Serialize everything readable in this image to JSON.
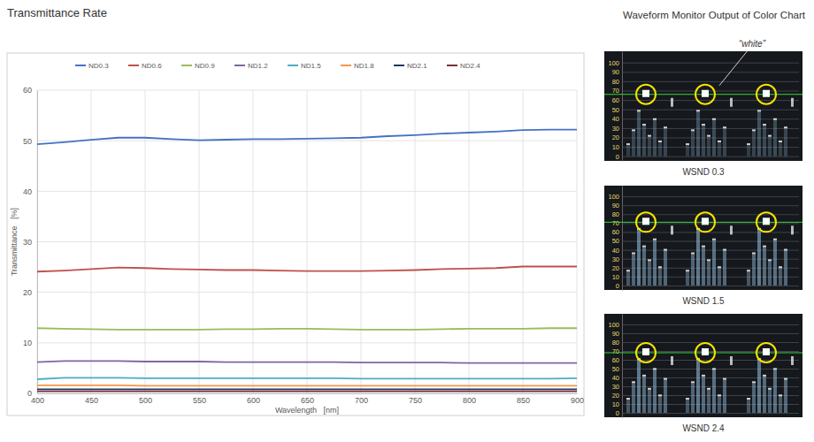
{
  "page": {
    "heading": "Waveform Monitor Output of Color Chart"
  },
  "chart_data": [
    {
      "type": "line",
      "title": "Transmittance Rate",
      "x_label": "Wavelength   [nm]",
      "y_label": "Transmittance   [%]",
      "x": [
        400,
        425,
        450,
        475,
        500,
        525,
        550,
        575,
        600,
        625,
        650,
        675,
        700,
        725,
        750,
        775,
        800,
        825,
        850,
        875,
        900
      ],
      "series": [
        {
          "name": "ND0.3",
          "color": "#4472c4",
          "values": [
            49.3,
            49.7,
            50.2,
            50.6,
            50.6,
            50.3,
            50.1,
            50.2,
            50.3,
            50.3,
            50.4,
            50.5,
            50.6,
            50.9,
            51.1,
            51.4,
            51.6,
            51.8,
            52.1,
            52.2,
            52.2
          ]
        },
        {
          "name": "ND0.6",
          "color": "#c0504d",
          "values": [
            24.1,
            24.3,
            24.6,
            24.9,
            24.8,
            24.6,
            24.5,
            24.4,
            24.4,
            24.3,
            24.2,
            24.2,
            24.2,
            24.3,
            24.4,
            24.6,
            24.7,
            24.8,
            25.1,
            25.1,
            25.1
          ]
        },
        {
          "name": "ND0.9",
          "color": "#9bbb59",
          "values": [
            12.9,
            12.8,
            12.7,
            12.6,
            12.6,
            12.6,
            12.6,
            12.7,
            12.7,
            12.8,
            12.8,
            12.7,
            12.6,
            12.6,
            12.6,
            12.7,
            12.8,
            12.8,
            12.8,
            12.9,
            12.9
          ]
        },
        {
          "name": "ND1.2",
          "color": "#8064a2",
          "values": [
            6.2,
            6.4,
            6.4,
            6.4,
            6.3,
            6.3,
            6.3,
            6.2,
            6.2,
            6.2,
            6.2,
            6.2,
            6.1,
            6.1,
            6.1,
            6.1,
            6.0,
            6.0,
            6.0,
            6.0,
            6.0
          ]
        },
        {
          "name": "ND1.5",
          "color": "#4bacc6",
          "values": [
            2.8,
            3.1,
            3.1,
            3.1,
            3.0,
            3.0,
            3.0,
            3.0,
            3.0,
            3.0,
            3.0,
            3.0,
            2.9,
            2.9,
            2.9,
            2.9,
            2.9,
            2.9,
            2.9,
            2.9,
            3.0
          ]
        },
        {
          "name": "ND1.8",
          "color": "#f79646",
          "values": [
            1.6,
            1.6,
            1.6,
            1.6,
            1.5,
            1.5,
            1.5,
            1.5,
            1.5,
            1.5,
            1.5,
            1.5,
            1.5,
            1.5,
            1.5,
            1.5,
            1.5,
            1.5,
            1.5,
            1.5,
            1.5
          ]
        },
        {
          "name": "ND2.1",
          "color": "#1f3864",
          "values": [
            0.8,
            0.8,
            0.8,
            0.8,
            0.8,
            0.8,
            0.8,
            0.8,
            0.8,
            0.8,
            0.8,
            0.8,
            0.8,
            0.8,
            0.8,
            0.8,
            0.8,
            0.8,
            0.8,
            0.8,
            0.8
          ]
        },
        {
          "name": "ND2.4",
          "color": "#7b2c3a",
          "values": [
            0.4,
            0.4,
            0.4,
            0.4,
            0.4,
            0.4,
            0.4,
            0.4,
            0.4,
            0.4,
            0.4,
            0.4,
            0.4,
            0.4,
            0.4,
            0.4,
            0.4,
            0.4,
            0.4,
            0.4,
            0.4
          ]
        }
      ],
      "xlim": [
        400,
        900
      ],
      "ylim": [
        0,
        60
      ],
      "xticks": [
        400,
        450,
        500,
        550,
        600,
        650,
        700,
        750,
        800,
        850,
        900
      ],
      "yticks": [
        0,
        10,
        20,
        30,
        40,
        50,
        60
      ],
      "grid": true,
      "legend": "top"
    },
    {
      "type": "waveform",
      "title": "WSND 0.3",
      "annotation": "“white”",
      "ylim": [
        -5,
        112
      ],
      "yticks": [
        0,
        10,
        20,
        30,
        40,
        50,
        60,
        70,
        80,
        90,
        100
      ],
      "white_level": 66,
      "grid": true
    },
    {
      "type": "waveform",
      "title": "WSND 1.5",
      "ylim": [
        -5,
        112
      ],
      "yticks": [
        0,
        10,
        20,
        30,
        40,
        50,
        60,
        70,
        80,
        90,
        100
      ],
      "white_level": 71,
      "grid": true
    },
    {
      "type": "waveform",
      "title": "WSND 2.4",
      "ylim": [
        -5,
        112
      ],
      "yticks": [
        0,
        10,
        20,
        30,
        40,
        50,
        60,
        70,
        80,
        90,
        100
      ],
      "white_level": 68,
      "grid": true
    }
  ]
}
